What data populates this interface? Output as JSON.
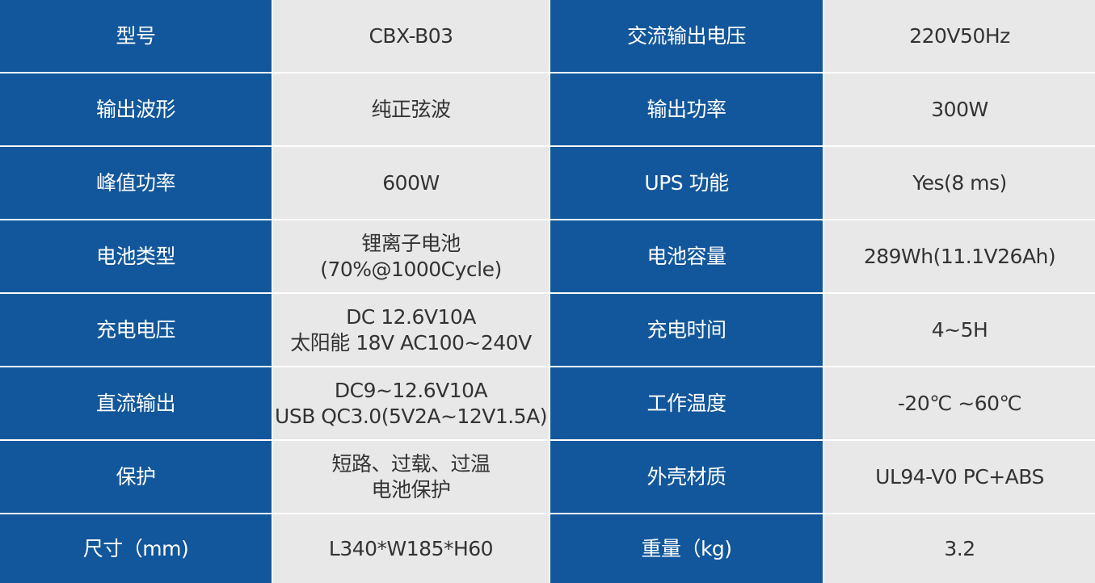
{
  "colors": {
    "label_bg": "#12579b",
    "value_bg": "#e8e8e8",
    "label_text": "#ffffff",
    "value_text": "#333333"
  },
  "rows": [
    {
      "k1": "型号",
      "v1": "CBX-B03",
      "k2": "交流输出电压",
      "v2": "220V50Hz"
    },
    {
      "k1": "输出波形",
      "v1": "纯正弦波",
      "k2": "输出功率",
      "v2": "300W"
    },
    {
      "k1": "峰值功率",
      "v1": "600W",
      "k2": "UPS  功能",
      "v2": "Yes(8 ms)"
    },
    {
      "k1": "电池类型",
      "v1": "锂离子电池\n(70%@1000Cycle)",
      "k2": "电池容量",
      "v2": "289Wh(11.1V26Ah)"
    },
    {
      "k1": "充电电压",
      "v1": "DC 12.6V10A\n太阳能 18V AC100~240V",
      "k2": "充电时间",
      "v2": "4~5H"
    },
    {
      "k1": "直流输出",
      "v1": "DC9~12.6V10A\nUSB QC3.0(5V2A~12V1.5A)",
      "k2": "工作温度",
      "v2": "-20℃ ~60℃"
    },
    {
      "k1": "保护",
      "v1": "短路、过载、过温\n电池保护",
      "k2": "外壳材质",
      "v2": "UL94-V0 PC+ABS"
    },
    {
      "k1": "尺寸（mm)",
      "v1": "L340*W185*H60",
      "k2": "重量（kg)",
      "v2": "3.2"
    }
  ]
}
